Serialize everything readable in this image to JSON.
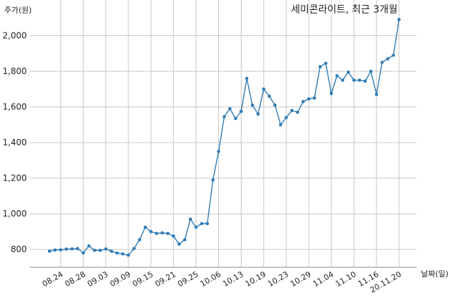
{
  "chart_data": {
    "type": "line",
    "title": "세미콘라이트, 최근 3개월",
    "ylabel": "주가(원)",
    "xlabel": "날짜(일)",
    "ylim": [
      700,
      2200
    ],
    "yticks": [
      800,
      1000,
      1200,
      1400,
      1600,
      1800,
      2000
    ],
    "ytick_labels": [
      "800",
      "1,000",
      "1,200",
      "1,400",
      "1,600",
      "1,800",
      "2,000"
    ],
    "xtick_labels": [
      "08.24",
      "08.28",
      "09.03",
      "09.09",
      "09.15",
      "09.21",
      "09.25",
      "10.06",
      "10.13",
      "10.19",
      "10.23",
      "10.29",
      "11.04",
      "11.10",
      "11.16",
      "20.11.20"
    ],
    "xtick_indices": [
      2,
      6,
      10,
      14,
      18,
      22,
      26,
      30,
      34,
      38,
      42,
      46,
      50,
      54,
      58,
      62
    ],
    "grid": true,
    "series": [
      {
        "color": "#2e7bb5",
        "values": [
          790,
          797,
          798,
          802,
          803,
          805,
          780,
          820,
          795,
          795,
          803,
          790,
          780,
          775,
          768,
          805,
          855,
          925,
          900,
          890,
          893,
          890,
          875,
          830,
          855,
          970,
          925,
          945,
          945,
          1190,
          1350,
          1545,
          1590,
          1535,
          1575,
          1760,
          1610,
          1560,
          1700,
          1660,
          1610,
          1500,
          1540,
          1580,
          1570,
          1630,
          1645,
          1650,
          1825,
          1845,
          1675,
          1775,
          1750,
          1795,
          1750,
          1750,
          1745,
          1800,
          1670,
          1850,
          1870,
          1890,
          2090
        ]
      }
    ]
  }
}
